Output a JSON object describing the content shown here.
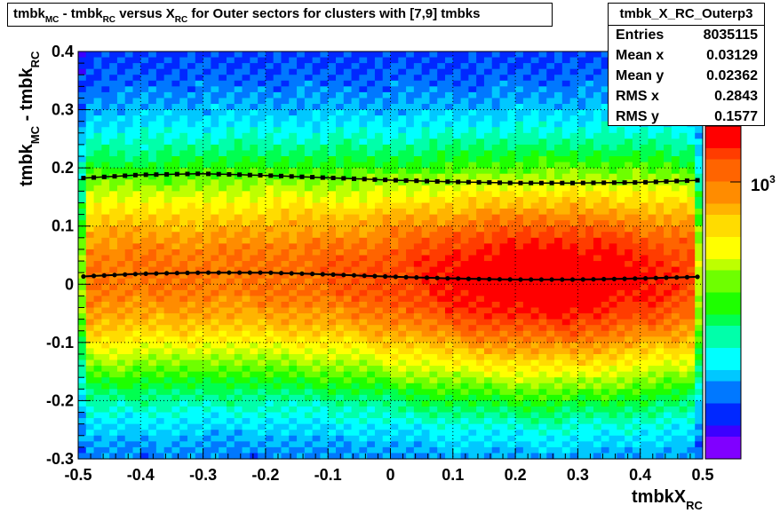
{
  "title": {
    "p1": "tmbk",
    "s1": "MC",
    "p2": " - tmbk",
    "s2": "RC",
    "p3": " versus X",
    "s3": "RC",
    "p4": " for Outer sectors for clusters with [7,9] tmbks"
  },
  "stats": {
    "name": "tmbk_X_RC_Outerp3",
    "rows": [
      {
        "key": "Entries",
        "value": "8035115"
      },
      {
        "key": "Mean x",
        "value": "0.03129"
      },
      {
        "key": "Mean y",
        "value": "0.02362"
      },
      {
        "key": "RMS x",
        "value": "0.2843"
      },
      {
        "key": "RMS y",
        "value": "0.1577"
      }
    ]
  },
  "axes": {
    "xlabel_main": "tmbkX",
    "xlabel_sub": "RC",
    "ylabel_p1": "tmbk",
    "ylabel_s1": "MC",
    "ylabel_p2": " - tmbk",
    "ylabel_s2": "RC"
  },
  "colorbar": {
    "label_base": "10",
    "label_exp": "3"
  },
  "chart_data": {
    "type": "heatmap",
    "xlim": [
      -0.5,
      0.5
    ],
    "ylim": [
      -0.3,
      0.4
    ],
    "xticks": [
      -0.5,
      -0.4,
      -0.3,
      -0.2,
      -0.1,
      0,
      0.1,
      0.2,
      0.3,
      0.4,
      0.5
    ],
    "xtick_labels": [
      "-0.5",
      "-0.4",
      "-0.3",
      "-0.2",
      "-0.1",
      "0",
      "0.1",
      "0.2",
      "0.3",
      "0.4",
      "0.5"
    ],
    "yticks": [
      -0.3,
      -0.2,
      -0.1,
      0,
      0.1,
      0.2,
      0.3,
      0.4
    ],
    "ytick_labels": [
      "-0.3",
      "-0.2",
      "-0.1",
      "0",
      "0.1",
      "0.2",
      "0.3",
      "0.4"
    ],
    "grid": true,
    "colorbar_scale": "log",
    "series": [
      {
        "x": [
          -0.5,
          -0.4,
          -0.3,
          -0.2,
          -0.1,
          0,
          0.1,
          0.2,
          0.3,
          0.4,
          0.5
        ],
        "values": [
          0.013,
          0.018,
          0.02,
          0.02,
          0.017,
          0.013,
          0.01,
          0.008,
          0.008,
          0.01,
          0.013
        ]
      },
      {
        "x": [
          -0.5,
          -0.4,
          -0.3,
          -0.2,
          -0.1,
          0,
          0.1,
          0.2,
          0.3,
          0.4,
          0.5
        ],
        "values": [
          0.182,
          0.188,
          0.19,
          0.187,
          0.183,
          0.179,
          0.176,
          0.174,
          0.174,
          0.175,
          0.179
        ]
      }
    ],
    "colors": {
      "red": "#ff0000",
      "orange": "#ff7f00",
      "yellow": "#ffff00",
      "green": "#33ff00",
      "cyan": "#00ffff",
      "blue": "#0033ff",
      "violet": "#8000ff"
    }
  }
}
